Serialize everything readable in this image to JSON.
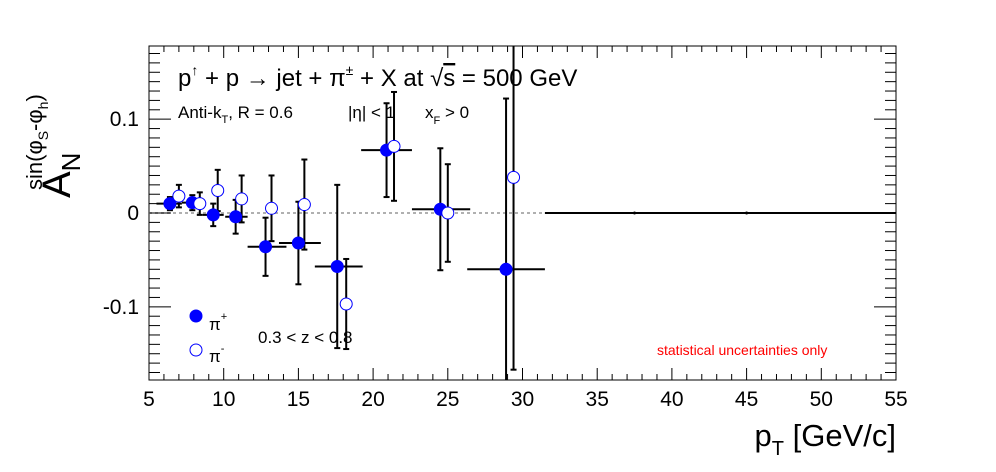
{
  "chart_data": {
    "type": "scatter",
    "title_parts": {
      "p": "p",
      "up": "↑",
      "plus1": " + p ",
      "arrow": "→",
      "jet": " jet + ",
      "pi": "π",
      "pm": "±",
      "rest": " + X at ",
      "sqrt": "√",
      "s": "s",
      "energy": " = 500 GeV"
    },
    "subtitle_parts": {
      "antik": "Anti-k",
      "antik_sub": "T",
      "radius": ", R = 0.6",
      "eta": "|η| < 1",
      "xf": "x",
      "xf_sub": "F",
      "xf_cond": " > 0"
    },
    "annotation_z": "0.3 < z < 0.8",
    "annotation_stat": "statistical uncertainties only",
    "xlabel": {
      "main": "p",
      "sub": "T",
      "unit": " [GeV/c]"
    },
    "ylabel": {
      "main": "A",
      "sub": "N",
      "sup": "sin(φ",
      "sup_sub1": "S",
      "sup_mid": "-φ",
      "sup_sub2": "h",
      "sup_end": ")"
    },
    "xlim": [
      5,
      55
    ],
    "ylim": [
      -0.178,
      0.178
    ],
    "xticks": [
      "5",
      "10",
      "15",
      "20",
      "25",
      "30",
      "35",
      "40",
      "45",
      "50",
      "55"
    ],
    "xtick_values": [
      5,
      10,
      15,
      20,
      25,
      30,
      35,
      40,
      45,
      50,
      55
    ],
    "yticks": [
      "-0.1",
      "0",
      "0.1"
    ],
    "ytick_values": [
      -0.1,
      0,
      0.1
    ],
    "zero_line": true,
    "colors": {
      "pi_plus": "#0000ff",
      "stat_text": "#ff0000",
      "zero_line": "#b0b0b0"
    },
    "series": [
      {
        "name": "π⁺",
        "legend_base": "π",
        "legend_sup": "+",
        "marker": "filled",
        "x": [
          6.4,
          7.9,
          9.3,
          10.8,
          12.8,
          15.0,
          17.6,
          20.9,
          24.5,
          28.9
        ],
        "y": [
          0.01,
          0.011,
          -0.002,
          -0.004,
          -0.036,
          -0.032,
          -0.057,
          0.067,
          0.004,
          -0.06
        ],
        "xerr_low": [
          0.9,
          0.7,
          0.7,
          0.7,
          1.2,
          1.3,
          1.5,
          1.7,
          1.9,
          2.6
        ],
        "xerr_high": [
          0.8,
          0.7,
          0.7,
          0.8,
          1.4,
          1.5,
          1.7,
          1.7,
          2.0,
          2.6
        ],
        "yerr": [
          0.007,
          0.008,
          0.012,
          0.018,
          0.031,
          0.044,
          0.087,
          0.05,
          0.065,
          0.182
        ]
      },
      {
        "name": "π⁻",
        "legend_base": "π",
        "legend_sup": "-",
        "marker": "open",
        "x": [
          7.0,
          8.4,
          9.6,
          11.2,
          13.2,
          15.4,
          18.2,
          21.4,
          25.0,
          29.4
        ],
        "y": [
          0.018,
          0.01,
          0.024,
          0.015,
          0.005,
          0.009,
          -0.097,
          0.071,
          0.0,
          0.038
        ],
        "xerr_low": [
          0.0,
          0.0,
          0.0,
          0.0,
          0.0,
          0.0,
          0.0,
          0.0,
          0.0,
          0.0
        ],
        "xerr_high": [
          0.0,
          0.0,
          0.0,
          0.0,
          0.0,
          0.0,
          0.0,
          0.0,
          0.0,
          0.0
        ],
        "yerr": [
          0.012,
          0.012,
          0.022,
          0.025,
          0.035,
          0.048,
          0.048,
          0.058,
          0.052,
          0.205
        ]
      },
      {
        "name": "",
        "marker": "none",
        "x": [
          37.5,
          45.0
        ],
        "y": [
          0.0,
          0.0
        ],
        "xerr_low": [
          6.0,
          7.5
        ],
        "xerr_high": [
          7.5,
          10.0
        ],
        "yerr": [
          0.0,
          0.0
        ]
      }
    ]
  }
}
